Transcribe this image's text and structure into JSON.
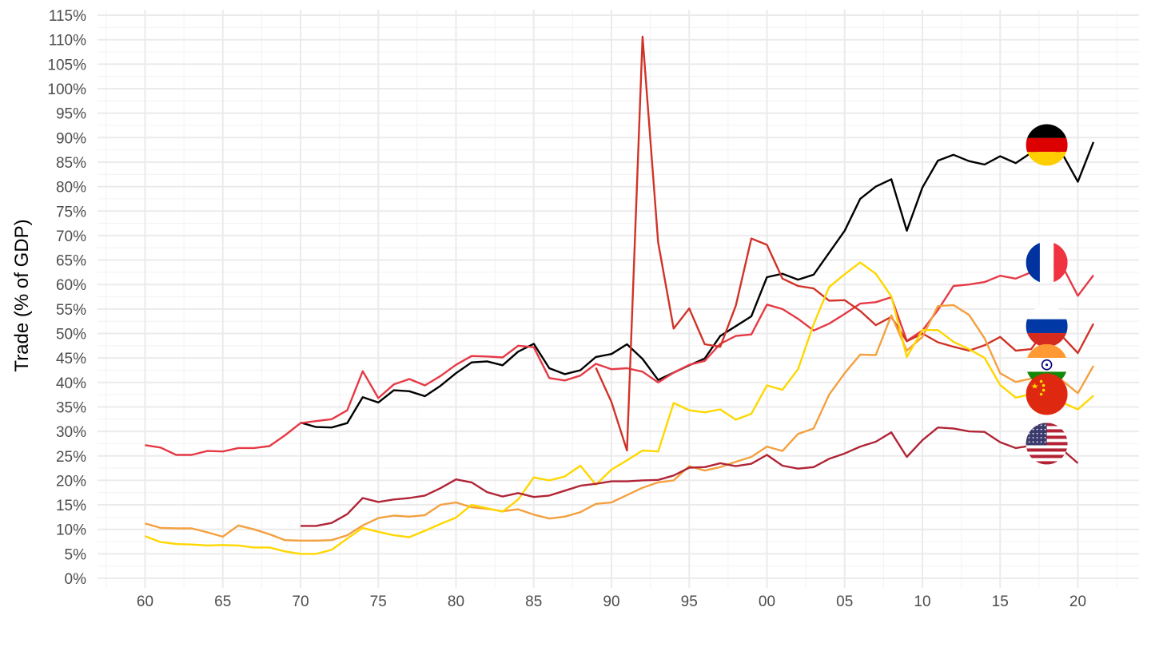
{
  "chart_data": {
    "type": "line",
    "title": "",
    "xlabel": "",
    "ylabel": "Trade (% of GDP)",
    "xlim": [
      1957,
      2024
    ],
    "ylim": [
      0,
      115
    ],
    "grid": true,
    "legend": "none",
    "x_ticks": [
      1960,
      1965,
      1970,
      1975,
      1980,
      1985,
      1990,
      1995,
      2000,
      2005,
      2010,
      2015,
      2020
    ],
    "x_tick_labels": [
      "60",
      "65",
      "70",
      "75",
      "80",
      "85",
      "90",
      "95",
      "00",
      "05",
      "10",
      "15",
      "20"
    ],
    "y_ticks": [
      0,
      5,
      10,
      15,
      20,
      25,
      30,
      35,
      40,
      45,
      50,
      55,
      60,
      65,
      70,
      75,
      80,
      85,
      90,
      95,
      100,
      105,
      110,
      115
    ],
    "y_tick_labels": [
      "0%",
      "5%",
      "10%",
      "15%",
      "20%",
      "25%",
      "30%",
      "35%",
      "40%",
      "45%",
      "50%",
      "55%",
      "60%",
      "65%",
      "70%",
      "75%",
      "80%",
      "85%",
      "90%",
      "95%",
      "100%",
      "105%",
      "110%",
      "115%"
    ],
    "series": [
      {
        "flag": "germany-flag",
        "color": "#000000",
        "x": [
          1970,
          1971,
          1972,
          1973,
          1974,
          1975,
          1976,
          1977,
          1978,
          1979,
          1980,
          1981,
          1982,
          1983,
          1984,
          1985,
          1986,
          1987,
          1988,
          1989,
          1990,
          1991,
          1992,
          1993,
          1994,
          1995,
          1996,
          1997,
          1998,
          1999,
          2000,
          2001,
          2002,
          2003,
          2004,
          2005,
          2006,
          2007,
          2008,
          2009,
          2010,
          2011,
          2012,
          2013,
          2014,
          2015,
          2016,
          2017,
          2018,
          2019,
          2020,
          2021
        ],
        "values": [
          31.8,
          30.9,
          30.8,
          31.7,
          37,
          35.9,
          38.4,
          38.2,
          37.2,
          39.3,
          41.9,
          44.1,
          44.3,
          43.5,
          46.3,
          47.9,
          42.9,
          41.7,
          42.5,
          45.2,
          45.8,
          47.8,
          44.8,
          40.5,
          42,
          43.5,
          44.9,
          49.5,
          51.5,
          53.5,
          61.5,
          62.2,
          61,
          62,
          66.5,
          71,
          77.5,
          80,
          81.5,
          71,
          79.8,
          85.3,
          86.5,
          85.2,
          84.5,
          86.2,
          84.8,
          86.9,
          88,
          86.7,
          81,
          89.1
        ]
      },
      {
        "flag": "france-flag",
        "color": "#e63946",
        "x": [
          1960,
          1961,
          1962,
          1963,
          1964,
          1965,
          1966,
          1967,
          1968,
          1969,
          1970,
          1971,
          1972,
          1973,
          1974,
          1975,
          1976,
          1977,
          1978,
          1979,
          1980,
          1981,
          1982,
          1983,
          1984,
          1985,
          1986,
          1987,
          1988,
          1989,
          1990,
          1991,
          1992,
          1993,
          1994,
          1995,
          1996,
          1997,
          1998,
          1999,
          2000,
          2001,
          2002,
          2003,
          2004,
          2005,
          2006,
          2007,
          2008,
          2009,
          2010,
          2011,
          2012,
          2013,
          2014,
          2015,
          2016,
          2017,
          2018,
          2019,
          2020,
          2021
        ],
        "values": [
          27.2,
          26.7,
          25.2,
          25.2,
          26,
          25.9,
          26.6,
          26.6,
          27,
          29.2,
          31.7,
          32.1,
          32.5,
          34.3,
          42.3,
          36.8,
          39.6,
          40.7,
          39.4,
          41.3,
          43.6,
          45.4,
          45.3,
          45.1,
          47.5,
          47.2,
          40.9,
          40.4,
          41.4,
          43.8,
          42.7,
          42.9,
          42.2,
          40,
          42,
          43.6,
          44.4,
          47.9,
          49.5,
          49.8,
          55.9,
          55,
          53,
          50.6,
          52,
          54,
          56.1,
          56.4,
          57.4,
          48.5,
          50.6,
          54.8,
          59.7,
          60,
          60.5,
          61.8,
          61.2,
          62.5,
          64.2,
          63.8,
          57.7,
          61.9
        ]
      },
      {
        "flag": "russia-flag",
        "color": "#d03328",
        "x": [
          1989,
          1990,
          1991,
          1992,
          1993,
          1994,
          1995,
          1996,
          1997,
          1998,
          1999,
          2000,
          2001,
          2002,
          2003,
          2004,
          2005,
          2006,
          2007,
          2008,
          2009,
          2010,
          2011,
          2012,
          2013,
          2014,
          2015,
          2016,
          2017,
          2018,
          2019,
          2020,
          2021
        ],
        "values": [
          43,
          36,
          26.1,
          110.6,
          68.6,
          51,
          55.1,
          47.8,
          47.3,
          55.7,
          69.4,
          68.1,
          61.2,
          59.7,
          59.2,
          56.7,
          56.8,
          54.6,
          51.7,
          53.4,
          48.4,
          50,
          48.2,
          47.3,
          46.5,
          47.6,
          49.3,
          46.5,
          46.8,
          51.2,
          49.4,
          46,
          52
        ]
      },
      {
        "flag": "india-flag",
        "color": "#f4a03f",
        "x": [
          1960,
          1961,
          1962,
          1963,
          1964,
          1965,
          1966,
          1967,
          1968,
          1969,
          1970,
          1971,
          1972,
          1973,
          1974,
          1975,
          1976,
          1977,
          1978,
          1979,
          1980,
          1981,
          1982,
          1983,
          1984,
          1985,
          1986,
          1987,
          1988,
          1989,
          1990,
          1991,
          1992,
          1993,
          1994,
          1995,
          1996,
          1997,
          1998,
          1999,
          2000,
          2001,
          2002,
          2003,
          2004,
          2005,
          2006,
          2007,
          2008,
          2009,
          2010,
          2011,
          2012,
          2013,
          2014,
          2015,
          2016,
          2017,
          2018,
          2019,
          2020,
          2021
        ],
        "values": [
          11.2,
          10.3,
          10.2,
          10.2,
          9.4,
          8.5,
          10.8,
          10,
          9,
          7.8,
          7.7,
          7.7,
          7.8,
          8.8,
          10.8,
          12.3,
          12.8,
          12.6,
          12.9,
          15,
          15.5,
          14.5,
          14.2,
          13.7,
          14.1,
          13,
          12.2,
          12.6,
          13.5,
          15.2,
          15.5,
          17,
          18.5,
          19.6,
          20,
          22.9,
          22,
          22.7,
          23.8,
          24.8,
          26.9,
          26,
          29.5,
          30.6,
          37.5,
          41.9,
          45.7,
          45.6,
          53.7,
          46.5,
          49.3,
          55.6,
          55.8,
          53.8,
          49,
          41.9,
          40.1,
          40.8,
          43.6,
          40.4,
          37.8,
          43.4
        ]
      },
      {
        "flag": "china-flag",
        "color": "#ffd700",
        "x": [
          1960,
          1961,
          1962,
          1963,
          1964,
          1965,
          1966,
          1967,
          1968,
          1969,
          1970,
          1971,
          1972,
          1973,
          1974,
          1975,
          1976,
          1977,
          1978,
          1979,
          1980,
          1981,
          1982,
          1983,
          1984,
          1985,
          1986,
          1987,
          1988,
          1989,
          1990,
          1991,
          1992,
          1993,
          1994,
          1995,
          1996,
          1997,
          1998,
          1999,
          2000,
          2001,
          2002,
          2003,
          2004,
          2005,
          2006,
          2007,
          2008,
          2009,
          2010,
          2011,
          2012,
          2013,
          2014,
          2015,
          2016,
          2017,
          2018,
          2019,
          2020,
          2021
        ],
        "values": [
          8.6,
          7.4,
          7,
          6.9,
          6.7,
          6.8,
          6.7,
          6.3,
          6.3,
          5.5,
          5,
          5,
          5.8,
          8.1,
          10.3,
          9.5,
          8.8,
          8.4,
          9.7,
          11.1,
          12.4,
          15,
          14.3,
          13.6,
          16.1,
          20.6,
          20,
          20.8,
          23,
          19.1,
          22.2,
          24.1,
          26.1,
          25.9,
          35.8,
          34.3,
          33.9,
          34.5,
          32.4,
          33.6,
          39.4,
          38.5,
          42.7,
          51.9,
          59.5,
          62.1,
          64.5,
          62.2,
          57.6,
          45.2,
          50.7,
          50.7,
          48.3,
          46.8,
          45,
          39.5,
          36.9,
          37.6,
          37.6,
          35.9,
          34.5,
          37.3
        ]
      },
      {
        "flag": "usa-flag",
        "color": "#b02536",
        "x": [
          1970,
          1971,
          1972,
          1973,
          1974,
          1975,
          1976,
          1977,
          1978,
          1979,
          1980,
          1981,
          1982,
          1983,
          1984,
          1985,
          1986,
          1987,
          1988,
          1989,
          1990,
          1991,
          1992,
          1993,
          1994,
          1995,
          1996,
          1997,
          1998,
          1999,
          2000,
          2001,
          2002,
          2003,
          2004,
          2005,
          2006,
          2007,
          2008,
          2009,
          2010,
          2011,
          2012,
          2013,
          2014,
          2015,
          2016,
          2017,
          2018,
          2019,
          2020
        ],
        "values": [
          10.7,
          10.7,
          11.3,
          13.1,
          16.4,
          15.6,
          16.1,
          16.4,
          16.9,
          18.4,
          20.2,
          19.6,
          17.6,
          16.7,
          17.4,
          16.6,
          16.9,
          17.9,
          18.9,
          19.3,
          19.8,
          19.8,
          20,
          20.1,
          21,
          22.6,
          22.7,
          23.5,
          22.9,
          23.4,
          25.2,
          23,
          22.4,
          22.7,
          24.4,
          25.5,
          26.9,
          27.9,
          29.8,
          24.8,
          28.2,
          30.8,
          30.6,
          30,
          29.9,
          27.8,
          26.6,
          27.1,
          27.5,
          26.3,
          23.5
        ]
      }
    ],
    "flag_markers": [
      {
        "name": "germany-flag",
        "x": 2018,
        "y": 88.5
      },
      {
        "name": "france-flag",
        "x": 2018,
        "y": 64.5
      },
      {
        "name": "russia-flag",
        "x": 2018,
        "y": 51.5
      },
      {
        "name": "india-flag",
        "x": 2018,
        "y": 43.6
      },
      {
        "name": "china-flag",
        "x": 2018,
        "y": 37.6
      },
      {
        "name": "usa-flag",
        "x": 2018,
        "y": 27.5
      }
    ]
  }
}
